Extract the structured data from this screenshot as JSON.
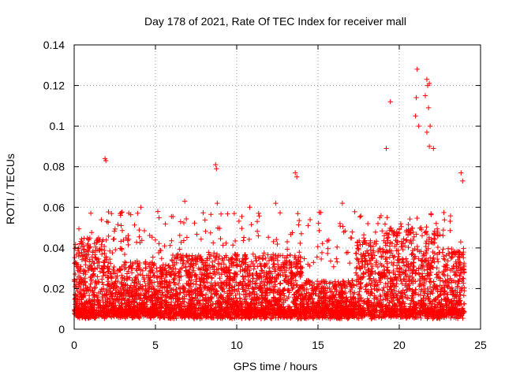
{
  "chart_data": {
    "type": "scatter",
    "title": "Day 178 of 2021, Rate Of TEC Index for receiver mall",
    "xlabel": "GPS time / hours",
    "ylabel": "ROTI / TECUs",
    "xlim": [
      0,
      25
    ],
    "ylim": [
      0,
      0.14
    ],
    "xticks": [
      "0",
      "5",
      "10",
      "15",
      "20",
      "25"
    ],
    "xtick_values": [
      0,
      5,
      10,
      15,
      20,
      25
    ],
    "yticks": [
      "0",
      "0.02",
      "0.04",
      "0.06",
      "0.08",
      "0.1",
      "0.12",
      "0.14"
    ],
    "ytick_values": [
      0,
      0.02,
      0.04,
      0.06,
      0.08,
      0.1,
      0.12,
      0.14
    ],
    "grid": true,
    "marker": "+",
    "series": [
      {
        "name": "ROTI",
        "color": "#ff0000",
        "x_range": [
          0,
          24
        ],
        "typical_range": [
          0.005,
          0.03
        ],
        "notable_points": [
          {
            "x": 1.9,
            "y": 0.084
          },
          {
            "x": 1.95,
            "y": 0.083
          },
          {
            "x": 4.1,
            "y": 0.06
          },
          {
            "x": 6.8,
            "y": 0.063
          },
          {
            "x": 8.7,
            "y": 0.081
          },
          {
            "x": 8.75,
            "y": 0.079
          },
          {
            "x": 8.8,
            "y": 0.062
          },
          {
            "x": 10.8,
            "y": 0.06
          },
          {
            "x": 12.4,
            "y": 0.062
          },
          {
            "x": 13.6,
            "y": 0.077
          },
          {
            "x": 13.7,
            "y": 0.075
          },
          {
            "x": 16.5,
            "y": 0.062
          },
          {
            "x": 19.2,
            "y": 0.089
          },
          {
            "x": 19.45,
            "y": 0.112
          },
          {
            "x": 21.1,
            "y": 0.128
          },
          {
            "x": 21.05,
            "y": 0.114
          },
          {
            "x": 21.0,
            "y": 0.105
          },
          {
            "x": 21.2,
            "y": 0.1
          },
          {
            "x": 21.7,
            "y": 0.123
          },
          {
            "x": 21.75,
            "y": 0.12
          },
          {
            "x": 21.85,
            "y": 0.121
          },
          {
            "x": 21.6,
            "y": 0.115
          },
          {
            "x": 21.8,
            "y": 0.109
          },
          {
            "x": 21.9,
            "y": 0.1
          },
          {
            "x": 21.7,
            "y": 0.097
          },
          {
            "x": 21.85,
            "y": 0.09
          },
          {
            "x": 22.1,
            "y": 0.089
          },
          {
            "x": 23.8,
            "y": 0.077
          },
          {
            "x": 23.9,
            "y": 0.073
          }
        ]
      }
    ]
  }
}
